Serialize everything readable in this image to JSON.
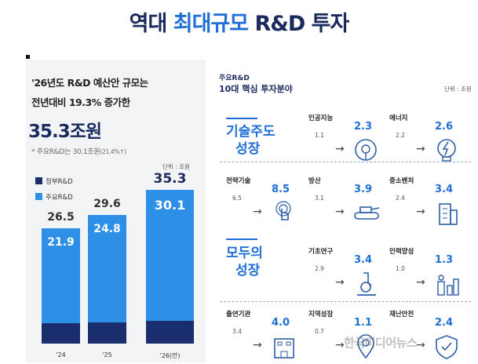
{
  "title": {
    "pre": "역대 ",
    "highlight": "최대규모",
    "post": " R&D 투자"
  },
  "left": {
    "line1": "'26년도 R&D 예산안 규모는",
    "line2": "전년대비 19.3% 증가한",
    "big": "35.3조원",
    "note": "* 주요R&D는 30.1조원",
    "note_small": "(21.4%↑)",
    "unit": "단위 : 조원",
    "legend": [
      {
        "label": "정부R&D",
        "color": "#1a2d6d"
      },
      {
        "label": "주요R&D",
        "color": "#2e8fe6"
      }
    ]
  },
  "chart_data": {
    "type": "bar",
    "categories": [
      "'24",
      "'25",
      "'26(안)"
    ],
    "series": [
      {
        "name": "정부R&D",
        "values": [
          26.5,
          29.6,
          35.3
        ]
      },
      {
        "name": "주요R&D",
        "values": [
          21.9,
          24.8,
          30.1
        ]
      }
    ],
    "labels_total": [
      "26.5",
      "29.6",
      "35.3"
    ],
    "labels_main": [
      "21.9",
      "24.8",
      "30.1"
    ],
    "ylabel": "",
    "unit": "단위 : 조원"
  },
  "right": {
    "header_small": "주요R&D",
    "header": "10대 핵심 투자분야",
    "unit": "단위 : 조원",
    "group1": [
      "기술주도",
      "성장"
    ],
    "group2": [
      "모두의",
      "성장"
    ],
    "cards": [
      {
        "name": "인공지능",
        "from": "1.1",
        "to": "2.3"
      },
      {
        "name": "에너지",
        "from": "2.2",
        "to": "2.6"
      },
      {
        "name": "전략기술",
        "from": "6.5",
        "to": "8.5"
      },
      {
        "name": "방산",
        "from": "3.1",
        "to": "3.9"
      },
      {
        "name": "중소벤처",
        "from": "2.4",
        "to": "3.4"
      },
      {
        "name": "기초연구",
        "from": "2.9",
        "to": "3.4"
      },
      {
        "name": "인력양성",
        "from": "1.0",
        "to": "1.3"
      },
      {
        "name": "출연기관",
        "from": "3.4",
        "to": "4.0"
      },
      {
        "name": "지역성장",
        "from": "0.7",
        "to": "1.1"
      },
      {
        "name": "재난안전",
        "from": "",
        "to": "2.4"
      }
    ],
    "arrow": "→"
  },
  "watermark": "한국미디어뉴스"
}
